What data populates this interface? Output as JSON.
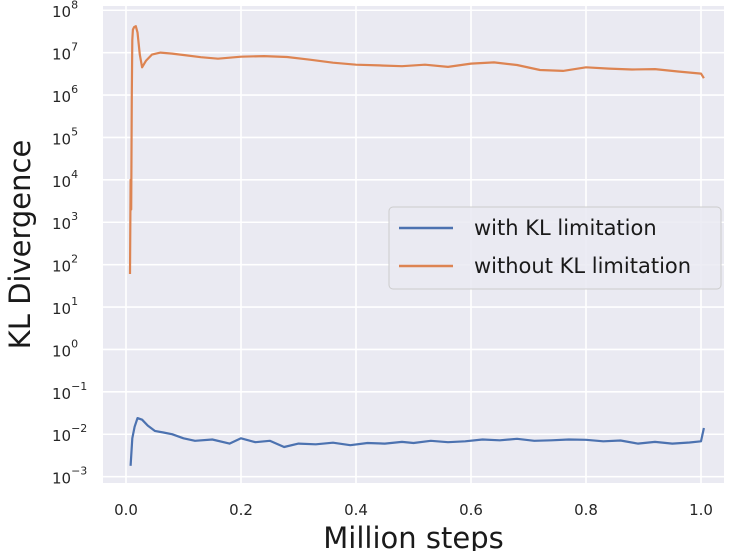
{
  "chart_data": {
    "type": "line",
    "title": "",
    "xlabel": "Million steps",
    "ylabel": "KL Divergence",
    "xlim": [
      -0.04,
      1.04
    ],
    "ylim_log10": [
      -3.15,
      8.1
    ],
    "yscale": "log",
    "grid": true,
    "legend_position": "center-right",
    "x_ticks": [
      0.0,
      0.2,
      0.4,
      0.6,
      0.8,
      1.0
    ],
    "x_tick_labels": [
      "0.0",
      "0.2",
      "0.4",
      "0.6",
      "0.8",
      "1.0"
    ],
    "y_ticks_log10": [
      8,
      7,
      6,
      5,
      4,
      3,
      2,
      1,
      0,
      -1,
      -2,
      -3
    ],
    "y_tick_labels": [
      {
        "base": "10",
        "exp": "8"
      },
      {
        "base": "10",
        "exp": "7"
      },
      {
        "base": "10",
        "exp": "6"
      },
      {
        "base": "10",
        "exp": "5"
      },
      {
        "base": "10",
        "exp": "4"
      },
      {
        "base": "10",
        "exp": "3"
      },
      {
        "base": "10",
        "exp": "2"
      },
      {
        "base": "10",
        "exp": "1"
      },
      {
        "base": "10",
        "exp": "0"
      },
      {
        "base": "10",
        "exp": "−1"
      },
      {
        "base": "10",
        "exp": "−2"
      },
      {
        "base": "10",
        "exp": "−3"
      }
    ],
    "series": [
      {
        "name": "with KL limitation",
        "color": "#4c72b0",
        "x": [
          0.008,
          0.011,
          0.015,
          0.02,
          0.028,
          0.038,
          0.05,
          0.065,
          0.08,
          0.1,
          0.12,
          0.15,
          0.18,
          0.2,
          0.225,
          0.25,
          0.275,
          0.3,
          0.33,
          0.36,
          0.39,
          0.42,
          0.45,
          0.48,
          0.5,
          0.53,
          0.56,
          0.59,
          0.62,
          0.65,
          0.68,
          0.71,
          0.74,
          0.77,
          0.8,
          0.83,
          0.86,
          0.89,
          0.92,
          0.95,
          0.98,
          1.0,
          1.005
        ],
        "y": [
          0.0018,
          0.008,
          0.015,
          0.024,
          0.022,
          0.016,
          0.012,
          0.011,
          0.01,
          0.008,
          0.007,
          0.0075,
          0.006,
          0.008,
          0.0065,
          0.007,
          0.005,
          0.006,
          0.0058,
          0.0063,
          0.0055,
          0.0062,
          0.006,
          0.0066,
          0.0062,
          0.007,
          0.0065,
          0.0068,
          0.0075,
          0.0072,
          0.0078,
          0.007,
          0.0072,
          0.0075,
          0.0074,
          0.0068,
          0.0071,
          0.006,
          0.0066,
          0.006,
          0.0064,
          0.0068,
          0.014
        ]
      },
      {
        "name": "without KL limitation",
        "color": "#dd8452",
        "x": [
          0.007,
          0.008,
          0.009,
          0.01,
          0.011,
          0.012,
          0.014,
          0.017,
          0.02,
          0.024,
          0.028,
          0.035,
          0.045,
          0.06,
          0.08,
          0.1,
          0.13,
          0.16,
          0.2,
          0.24,
          0.28,
          0.32,
          0.36,
          0.4,
          0.44,
          0.48,
          0.52,
          0.56,
          0.6,
          0.64,
          0.68,
          0.72,
          0.76,
          0.8,
          0.84,
          0.88,
          0.92,
          0.96,
          1.0,
          1.005
        ],
        "y": [
          60,
          10000,
          2000,
          1000000,
          20000000,
          35000000,
          40000000,
          42000000,
          30000000,
          9000000,
          4500000,
          6500000,
          9000000,
          10000000,
          9500000,
          8800000,
          7800000,
          7200000,
          8000000,
          8300000,
          7900000,
          6800000,
          5800000,
          5200000,
          5000000,
          4800000,
          5200000,
          4600000,
          5500000,
          5900000,
          5100000,
          3900000,
          3700000,
          4500000,
          4200000,
          4000000,
          4100000,
          3600000,
          3200000,
          2500000
        ]
      }
    ]
  }
}
